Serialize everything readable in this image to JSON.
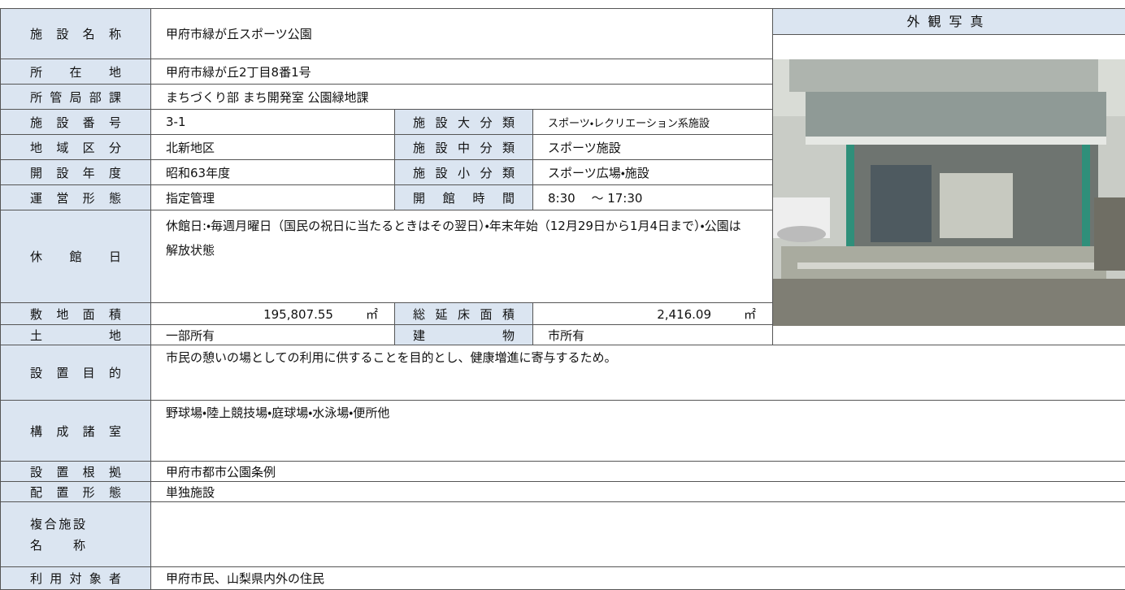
{
  "photo_title": "外観写真",
  "rows": [
    {
      "label": "施設名称",
      "value": "甲府市緑が丘スポーツ公園"
    },
    {
      "label": "所在地",
      "value": "甲府市緑が丘2丁目8番1号"
    },
    {
      "label": "所管局部課",
      "value": "まちづくり部 まち開発室 公園緑地課"
    },
    {
      "label": "施設番号",
      "value": "3-1",
      "label2": "施設大分類",
      "value2": "スポーツ・レクリエーション系施設"
    },
    {
      "label": "地域区分",
      "value": "北新地区",
      "label2": "施設中分類",
      "value2": "スポーツ施設"
    },
    {
      "label": "開設年度",
      "value": "昭和63年度",
      "label2": "施設小分類",
      "value2": "スポーツ広場・施設"
    },
    {
      "label": "運営形態",
      "value": "指定管理",
      "label2": "開館時間",
      "value2": "8:30　 ～ 17:30"
    },
    {
      "label": "休館日",
      "value": "休館日:・毎週月曜日（国民の祝日に当たるときはその翌日）・年末年始（12月29日から1月4日まで）・公園は解放状態"
    },
    {
      "label": "敷地面積",
      "value": "195,807.55",
      "unit": "㎡",
      "label2": "総延床面積",
      "value2": "2,416.09",
      "unit2": "㎡"
    },
    {
      "label": "土地",
      "value": "一部所有",
      "label2": "建物",
      "value2": "市所有"
    },
    {
      "label": "設置目的",
      "value": "市民の憩いの場としての利用に供することを目的とし、健康増進に寄与するため。"
    },
    {
      "label": "構成諸室",
      "value": "野球場・陸上競技場・庭球場・水泳場・便所他"
    },
    {
      "label": "設置根拠",
      "value": "甲府市都市公園条例"
    },
    {
      "label": "配置形態",
      "value": "単独施設"
    },
    {
      "label": "複合施設名称"
    },
    {
      "label": "利用対象者",
      "value": "甲府市民、山梨県内外の住民"
    }
  ]
}
